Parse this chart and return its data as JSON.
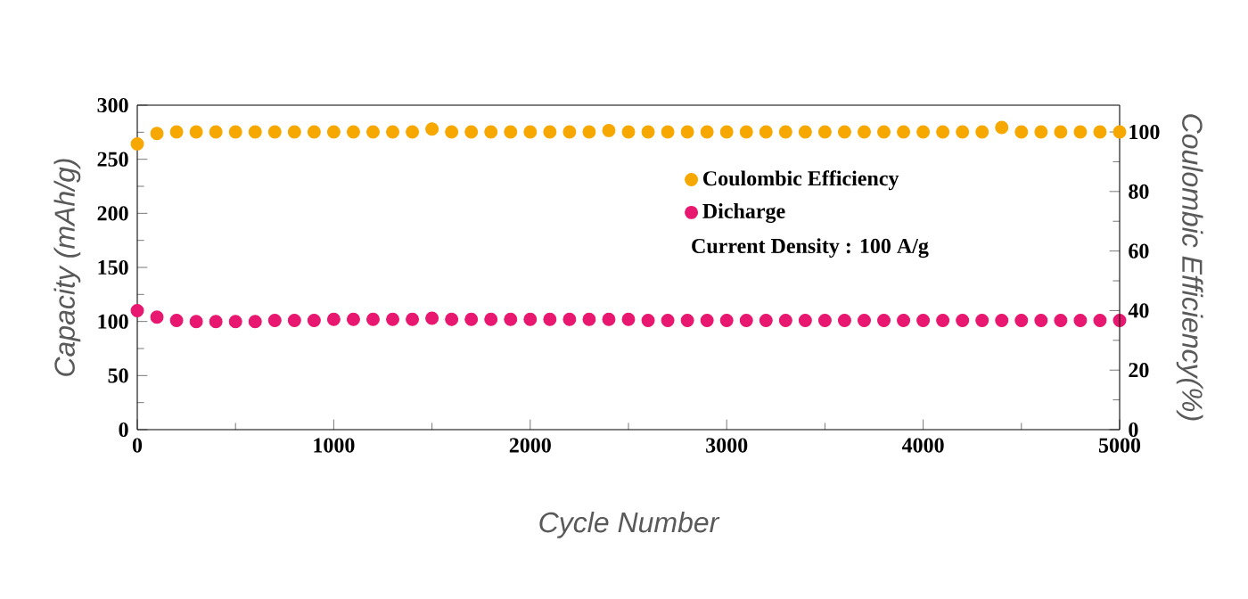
{
  "chart_data": {
    "type": "scatter",
    "xlabel": "Cycle Number",
    "ylabel": "Capacity (mAh/g)",
    "y2label": "Coulombic Efficiency(%)",
    "x": [
      0,
      100,
      200,
      300,
      400,
      500,
      600,
      700,
      800,
      900,
      1000,
      1100,
      1200,
      1300,
      1400,
      1500,
      1600,
      1700,
      1800,
      1900,
      2000,
      2100,
      2200,
      2300,
      2400,
      2500,
      2600,
      2700,
      2800,
      2900,
      3000,
      3100,
      3200,
      3300,
      3400,
      3500,
      3600,
      3700,
      3800,
      3900,
      4000,
      4100,
      4200,
      4300,
      4400,
      4500,
      4600,
      4700,
      4800,
      4900,
      5000
    ],
    "series": [
      {
        "name": "Coulombic Efficiency",
        "color": "#f7a800",
        "axis": "y2",
        "values": [
          96,
          99.5,
          100,
          100,
          100,
          100,
          100,
          100,
          100,
          100,
          100,
          100,
          100,
          100,
          100,
          101,
          100,
          100,
          100,
          100,
          100,
          100,
          100,
          100,
          100.5,
          100,
          100,
          100,
          100,
          100,
          100,
          100,
          100,
          100,
          100,
          100,
          100,
          100,
          100,
          100,
          100,
          100,
          100,
          100,
          101.5,
          100,
          100,
          100,
          100,
          100,
          100
        ]
      },
      {
        "name": "Dicharge",
        "color": "#e8176f",
        "values": [
          110,
          104,
          101,
          100,
          100,
          100,
          100,
          101,
          101,
          101,
          102,
          102,
          102,
          102,
          102,
          103,
          102,
          102,
          102,
          102,
          102,
          102,
          102,
          102,
          102,
          102,
          101,
          101,
          101,
          101,
          101,
          101,
          101,
          101,
          101,
          101,
          101,
          101,
          101,
          101,
          101,
          101,
          101,
          101,
          101,
          101,
          101,
          101,
          101,
          101,
          101
        ]
      }
    ],
    "xlim": [
      0,
      5000
    ],
    "xticks": [
      0,
      1000,
      2000,
      3000,
      4000,
      5000
    ],
    "ylim": [
      0,
      300
    ],
    "yticks": [
      0,
      50,
      100,
      150,
      200,
      250,
      300
    ],
    "y2lim": [
      0,
      109
    ],
    "y2ticks": [
      0,
      20,
      40,
      60,
      80,
      100
    ],
    "annotations": [
      "Current Density : 100 A/g"
    ],
    "legend": "right",
    "grid": false
  }
}
